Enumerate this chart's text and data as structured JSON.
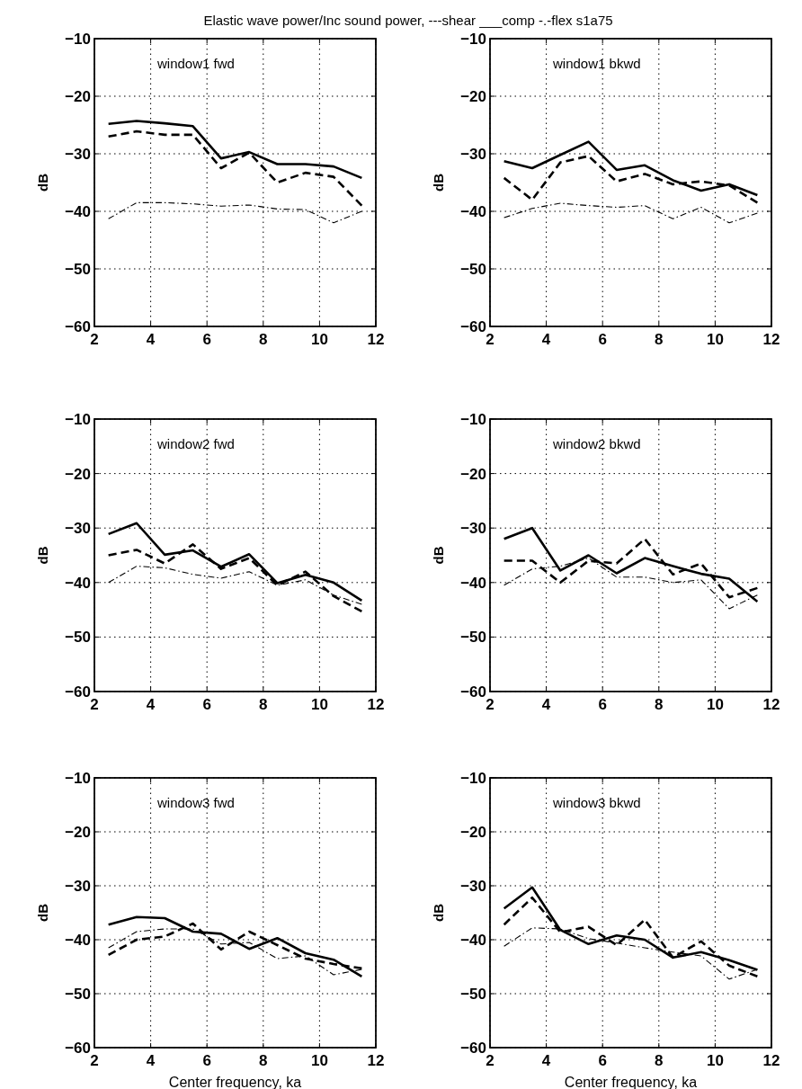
{
  "chart_data": [
    {
      "type": "line",
      "title": "Elastic wave power/Inc sound power, ---shear ___comp -.-flex  s1a75",
      "annotations": [
        "window1 fwd"
      ],
      "ylabel": "dB",
      "x": [
        2.5,
        3.5,
        4.5,
        5.5,
        6.5,
        7.5,
        8.5,
        9.5,
        10.5,
        11.5
      ],
      "xlim": [
        2,
        12
      ],
      "ylim": [
        -60,
        -10
      ],
      "xticks": [
        2,
        4,
        6,
        8,
        10,
        12
      ],
      "yticks": [
        -60,
        -50,
        -40,
        -30,
        -20,
        -10
      ],
      "grid": true,
      "series": [
        {
          "color": "#000000",
          "line_style": "solid",
          "values": [
            -24.8,
            -24.3,
            -24.7,
            -25.2,
            -30.8,
            -29.7,
            -31.8,
            -31.8,
            -32.2,
            -34.2
          ]
        },
        {
          "color": "#000000",
          "line_style": "dashed",
          "values": [
            -27,
            -26.1,
            -26.7,
            -26.7,
            -32.5,
            -29.8,
            -35,
            -33.3,
            -34,
            -39
          ]
        },
        {
          "color": "#000000",
          "line_style": "dashdot",
          "values": [
            -41.3,
            -38.5,
            -38.5,
            -38.7,
            -39.1,
            -38.9,
            -39.6,
            -39.7,
            -42,
            -40
          ]
        }
      ]
    },
    {
      "type": "line",
      "annotations": [
        "window1 bkwd"
      ],
      "ylabel": "dB",
      "x": [
        2.5,
        3.5,
        4.5,
        5.5,
        6.5,
        7.5,
        8.5,
        9.5,
        10.5,
        11.5
      ],
      "xlim": [
        2,
        12
      ],
      "ylim": [
        -60,
        -10
      ],
      "xticks": [
        2,
        4,
        6,
        8,
        10,
        12
      ],
      "yticks": [
        -60,
        -50,
        -40,
        -30,
        -20,
        -10
      ],
      "grid": true,
      "series": [
        {
          "color": "#000000",
          "line_style": "solid",
          "values": [
            -31.3,
            -32.5,
            -30.2,
            -27.9,
            -32.8,
            -32,
            -34.6,
            -36.4,
            -35.3,
            -37.2
          ]
        },
        {
          "color": "#000000",
          "line_style": "dashed",
          "values": [
            -34.2,
            -38,
            -31.5,
            -30.4,
            -34.8,
            -33.5,
            -35.3,
            -34.8,
            -35.5,
            -38.5
          ]
        },
        {
          "color": "#000000",
          "line_style": "dashdot",
          "values": [
            -41.1,
            -39.5,
            -38.6,
            -39,
            -39.3,
            -39,
            -41.3,
            -39.3,
            -42,
            -40.3
          ]
        }
      ]
    },
    {
      "type": "line",
      "annotations": [
        "window2 fwd"
      ],
      "ylabel": "dB",
      "x": [
        2.5,
        3.5,
        4.5,
        5.5,
        6.5,
        7.5,
        8.5,
        9.5,
        10.5,
        11.5
      ],
      "xlim": [
        2,
        12
      ],
      "ylim": [
        -60,
        -10
      ],
      "xticks": [
        2,
        4,
        6,
        8,
        10,
        12
      ],
      "yticks": [
        -60,
        -50,
        -40,
        -30,
        -20,
        -10
      ],
      "grid": true,
      "series": [
        {
          "color": "#000000",
          "line_style": "solid",
          "values": [
            -31.1,
            -29.1,
            -34.9,
            -34.1,
            -37.1,
            -34.8,
            -40.1,
            -38.6,
            -40,
            -43.3
          ]
        },
        {
          "color": "#000000",
          "line_style": "dashed",
          "values": [
            -35,
            -34,
            -36.5,
            -33,
            -37.5,
            -35.5,
            -40.5,
            -38,
            -42.5,
            -45.3
          ]
        },
        {
          "color": "#000000",
          "line_style": "dashdot",
          "values": [
            -40,
            -37,
            -37.3,
            -38.5,
            -39.2,
            -38,
            -40.5,
            -39.5,
            -42.3,
            -44
          ]
        }
      ]
    },
    {
      "type": "line",
      "annotations": [
        "window2 bkwd"
      ],
      "ylabel": "dB",
      "x": [
        2.5,
        3.5,
        4.5,
        5.5,
        6.5,
        7.5,
        8.5,
        9.5,
        10.5,
        11.5
      ],
      "xlim": [
        2,
        12
      ],
      "ylim": [
        -60,
        -10
      ],
      "xticks": [
        2,
        4,
        6,
        8,
        10,
        12
      ],
      "yticks": [
        -60,
        -50,
        -40,
        -30,
        -20,
        -10
      ],
      "grid": true,
      "series": [
        {
          "color": "#000000",
          "line_style": "solid",
          "values": [
            -32,
            -30,
            -37.8,
            -35,
            -38.3,
            -35.5,
            -37,
            -38.4,
            -39.3,
            -43.5
          ]
        },
        {
          "color": "#000000",
          "line_style": "dashed",
          "values": [
            -36,
            -36,
            -40,
            -36,
            -36.5,
            -32,
            -38.5,
            -36.5,
            -42.7,
            -41
          ]
        },
        {
          "color": "#000000",
          "line_style": "dashdot",
          "values": [
            -40.5,
            -37.5,
            -37,
            -35.5,
            -39,
            -39,
            -40,
            -39.5,
            -44.8,
            -42.3
          ]
        }
      ]
    },
    {
      "type": "line",
      "annotations": [
        "window3 fwd"
      ],
      "xlabel": "Center frequency, ka",
      "ylabel": "dB",
      "x": [
        2.5,
        3.5,
        4.5,
        5.5,
        6.5,
        7.5,
        8.5,
        9.5,
        10.5,
        11.5
      ],
      "xlim": [
        2,
        12
      ],
      "ylim": [
        -60,
        -10
      ],
      "xticks": [
        2,
        4,
        6,
        8,
        10,
        12
      ],
      "yticks": [
        -60,
        -50,
        -40,
        -30,
        -20,
        -10
      ],
      "grid": true,
      "series": [
        {
          "color": "#000000",
          "line_style": "solid",
          "values": [
            -37.2,
            -35.8,
            -36,
            -38.5,
            -38.9,
            -41.7,
            -39.7,
            -42.5,
            -43.7,
            -46.8
          ]
        },
        {
          "color": "#000000",
          "line_style": "dashed",
          "values": [
            -42.8,
            -40,
            -39.4,
            -37,
            -41.8,
            -38.5,
            -41,
            -43.5,
            -44.5,
            -45.3
          ]
        },
        {
          "color": "#000000",
          "line_style": "dashdot",
          "values": [
            -41.5,
            -38.5,
            -38,
            -38,
            -40.8,
            -40.5,
            -43.5,
            -43,
            -46.5,
            -45.5
          ]
        }
      ]
    },
    {
      "type": "line",
      "annotations": [
        "window3 bkwd"
      ],
      "xlabel": "Center frequency, ka",
      "ylabel": "dB",
      "x": [
        2.5,
        3.5,
        4.5,
        5.5,
        6.5,
        7.5,
        8.5,
        9.5,
        10.5,
        11.5
      ],
      "xlim": [
        2,
        12
      ],
      "ylim": [
        -60,
        -10
      ],
      "xticks": [
        2,
        4,
        6,
        8,
        10,
        12
      ],
      "yticks": [
        -60,
        -50,
        -40,
        -30,
        -20,
        -10
      ],
      "grid": true,
      "series": [
        {
          "color": "#000000",
          "line_style": "solid",
          "values": [
            -34.2,
            -30.3,
            -38.2,
            -40.8,
            -39.2,
            -40,
            -43.3,
            -42.3,
            -43.8,
            -45.6
          ]
        },
        {
          "color": "#000000",
          "line_style": "dashed",
          "values": [
            -37.2,
            -32.2,
            -38.6,
            -37.6,
            -41,
            -36.3,
            -43.3,
            -40.3,
            -44.8,
            -46.8
          ]
        },
        {
          "color": "#000000",
          "line_style": "dashdot",
          "values": [
            -41.2,
            -37.8,
            -38,
            -39.8,
            -40.6,
            -41.5,
            -42.3,
            -43,
            -47.3,
            -45.5
          ]
        }
      ]
    }
  ]
}
